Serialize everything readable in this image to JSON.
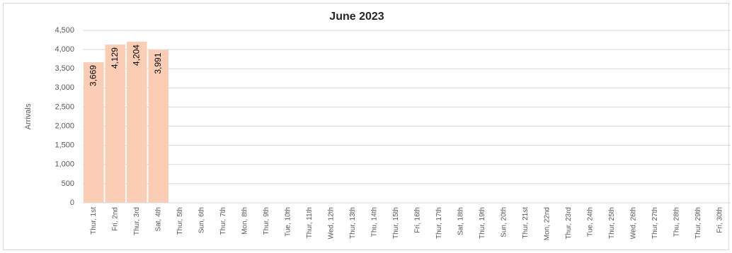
{
  "chart_data": {
    "type": "bar",
    "title": "June 2023",
    "y_label": "Arrivals",
    "categories": [
      "Thur, 1st",
      "Fri, 2nd",
      "Thur, 3rd",
      "Sat, 4th",
      "Thur, 5th",
      "Sun, 6th",
      "Thur, 7th",
      "Mon, 8th",
      "Thur, 9th",
      "Tue, 10th",
      "Thur, 11th",
      "Wed, 12th",
      "Thur, 13th",
      "Thu, 14th",
      "Thur, 15th",
      "Fri, 16th",
      "Thur, 17th",
      "Sat, 18th",
      "Thur, 19th",
      "Sun, 20th",
      "Thur, 21st",
      "Mon, 22nd",
      "Thur, 23rd",
      "Tue, 24th",
      "Thur, 25th",
      "Wed, 26th",
      "Thur, 27th",
      "Thu, 28th",
      "Thur, 29th",
      "Fri, 30th"
    ],
    "values": [
      3669,
      4129,
      4204,
      3991,
      null,
      null,
      null,
      null,
      null,
      null,
      null,
      null,
      null,
      null,
      null,
      null,
      null,
      null,
      null,
      null,
      null,
      null,
      null,
      null,
      null,
      null,
      null,
      null,
      null,
      null
    ],
    "value_labels": [
      "3,669",
      "4,129",
      "4,204",
      "3,991",
      null,
      null,
      null,
      null,
      null,
      null,
      null,
      null,
      null,
      null,
      null,
      null,
      null,
      null,
      null,
      null,
      null,
      null,
      null,
      null,
      null,
      null,
      null,
      null,
      null,
      null
    ],
    "color": "#fbcdb5",
    "ylim": [
      0,
      4500
    ],
    "yticks": [
      0,
      500,
      {
        "value": 1000,
        "label": "1,000"
      },
      {
        "value": 1500,
        "label": "1,500"
      },
      {
        "value": 2000,
        "label": "2,000"
      },
      {
        "value": 2500,
        "label": "2,500"
      },
      {
        "value": 3000,
        "label": "3,000"
      },
      {
        "value": 3500,
        "label": "3,500"
      },
      {
        "value": 4000,
        "label": "4,000"
      },
      {
        "value": 4500,
        "label": "4,500"
      }
    ],
    "grid": true
  }
}
